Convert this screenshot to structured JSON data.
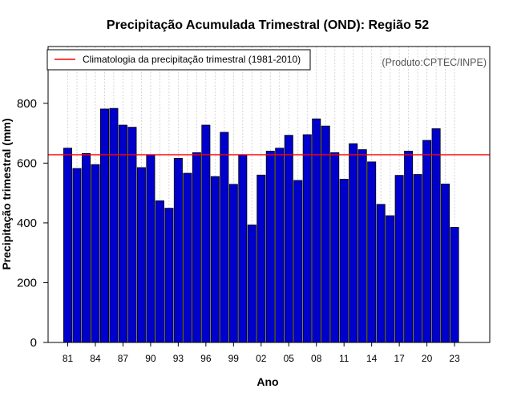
{
  "chart_data": {
    "type": "bar",
    "title": "Precipitação Acumulada Trimestral (OND): Região 52",
    "xlabel": "Ano",
    "ylabel": "Precipitação trimestral (mm)",
    "credit": "(Produto:CPTEC/INPE)",
    "categories": [
      "1981",
      "1982",
      "1983",
      "1984",
      "1985",
      "1986",
      "1987",
      "1988",
      "1989",
      "1990",
      "1991",
      "1992",
      "1993",
      "1994",
      "1995",
      "1996",
      "1997",
      "1998",
      "1999",
      "2000",
      "2001",
      "2002",
      "2003",
      "2004",
      "2005",
      "2006",
      "2007",
      "2008",
      "2009",
      "2010",
      "2011",
      "2012",
      "2013",
      "2014",
      "2015",
      "2016",
      "2017",
      "2018",
      "2019",
      "2020",
      "2021",
      "2022",
      "2023"
    ],
    "values": [
      650,
      582,
      632,
      595,
      781,
      783,
      727,
      720,
      585,
      628,
      474,
      449,
      616,
      566,
      635,
      727,
      555,
      703,
      529,
      628,
      393,
      560,
      640,
      650,
      693,
      542,
      695,
      748,
      724,
      635,
      546,
      665,
      645,
      604,
      462,
      424,
      559,
      640,
      562,
      676,
      715,
      530,
      385
    ],
    "x_tick_labels": [
      "81",
      "84",
      "87",
      "90",
      "93",
      "96",
      "99",
      "02",
      "05",
      "08",
      "11",
      "14",
      "17",
      "20",
      "23"
    ],
    "x_tick_every": 3,
    "ylim": [
      0,
      990
    ],
    "y_ticks": [
      0,
      200,
      400,
      600,
      800
    ],
    "reference_line": {
      "value": 628,
      "label": "Climatologia da precipitação trimestral (1981-2010)",
      "color": "#ff0000"
    },
    "bar_color": "#0000cc",
    "grid": "vertical dotted",
    "legend_position": "top-left"
  }
}
